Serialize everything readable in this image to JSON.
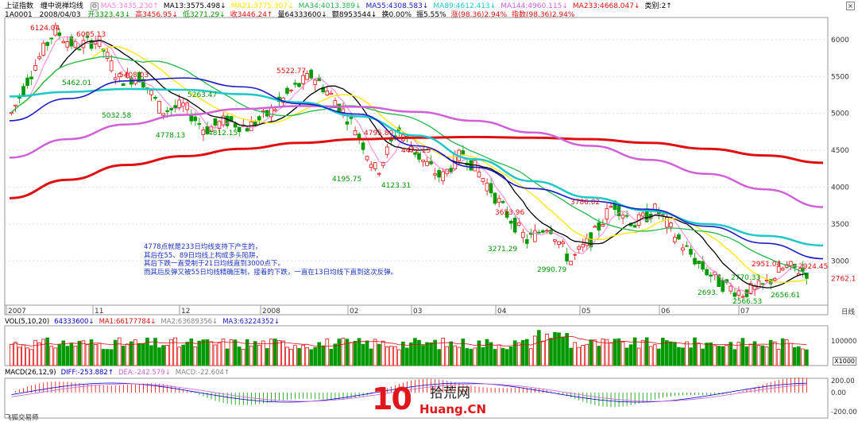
{
  "header": {
    "title": "上证指数",
    "indicator": "缠中说禅均线",
    "ma_items": [
      {
        "label": "MA5:3435.230↑",
        "color": "#ff7fd8"
      },
      {
        "label": "MA13:3575.498↓",
        "color": "#000000"
      },
      {
        "label": "MA21:3775.307↓",
        "color": "#ffe600"
      },
      {
        "label": "MA34:4013.389↓",
        "color": "#22b84a"
      },
      {
        "label": "MA55:4308.583↓",
        "color": "#1a1ac8"
      },
      {
        "label": "MA89:4612.413↓",
        "color": "#1ec8c8"
      },
      {
        "label": "MA144:4960.115↓",
        "color": "#d060d8"
      },
      {
        "label": "MA233:4668.047↓",
        "color": "#e01010"
      },
      {
        "label": "类别:2↑",
        "color": "#000000"
      }
    ]
  },
  "ohlc": {
    "code": "1A0001",
    "date": "2008/04/03",
    "items": [
      {
        "label": "开3323.43↓",
        "color": "#009900"
      },
      {
        "label": "高3456.95↓",
        "color": "#e01010"
      },
      {
        "label": "低3271.29↓",
        "color": "#009900"
      },
      {
        "label": "收3446.24↑",
        "color": "#e01010"
      },
      {
        "label": "量64333600↓",
        "color": "#000000"
      },
      {
        "label": "额8953544↓",
        "color": "#000000"
      },
      {
        "label": "换0.00%",
        "color": "#000000"
      },
      {
        "label": "振5.55%",
        "color": "#000000"
      },
      {
        "label": "涨(98.36)2.94%",
        "color": "#e01010"
      },
      {
        "label": "指数(98.36)2.94%",
        "color": "#e01010"
      }
    ]
  },
  "price_labels": {
    "y_axis": [
      "6000",
      "5500",
      "5000",
      "4500",
      "4000",
      "3500",
      "3000"
    ],
    "current": "2762.1",
    "highs_lows": [
      {
        "text": "6124.04",
        "color": "#e01010"
      },
      {
        "text": "6005.13",
        "color": "#e01010"
      },
      {
        "text": "5462.01",
        "color": "#009900"
      },
      {
        "text": "5032.58",
        "color": "#009900"
      },
      {
        "text": "5522.77",
        "color": "#e01010"
      },
      {
        "text": "4778.13",
        "color": "#009900"
      },
      {
        "text": "4812.15",
        "color": "#009900"
      },
      {
        "text": "4795.80",
        "color": "#e01010"
      },
      {
        "text": "4195.75",
        "color": "#009900"
      },
      {
        "text": "4123.31",
        "color": "#009900"
      },
      {
        "text": "4472.15",
        "color": "#e01010"
      },
      {
        "text": "3653.96",
        "color": "#e01010"
      },
      {
        "text": "3271.29",
        "color": "#009900"
      },
      {
        "text": "3786.02",
        "color": "#e01010"
      },
      {
        "text": "2990.79",
        "color": "#009900"
      },
      {
        "text": "2951.04",
        "color": "#e01010"
      },
      {
        "text": "2693.",
        "color": "#009900"
      },
      {
        "text": "2566.53",
        "color": "#009900"
      },
      {
        "text": "2656.61",
        "color": "#009900"
      },
      {
        "text": "2924.45",
        "color": "#e01010"
      },
      {
        "text": "2770.33",
        "color": "#009900"
      },
      {
        "text": "5263.47",
        "color": "#009900"
      },
      {
        "text": "5408.03",
        "color": "#e01010"
      }
    ],
    "time_axis": [
      "2007",
      "11",
      "12",
      "2008",
      "02",
      "03",
      "04",
      "05",
      "06",
      "07"
    ],
    "day_button": "日线"
  },
  "annotation": {
    "lines": [
      "4778点就是233日均线支持下产生的，",
      "其后在55、89日均线上构成多头陷阱，",
      "其后下跌一直受制于21日均线直到3000点下。",
      "而其后反弹又被55日均线精确压制，接着的下跌，一直在13日均线下直到这次反弹。"
    ]
  },
  "volume": {
    "header": [
      {
        "label": "VOL(5,10,20)",
        "color": "#000000"
      },
      {
        "label": "64333600↓",
        "color": "#0000cc"
      },
      {
        "label": "MA1:66177784↓",
        "color": "#e01010"
      },
      {
        "label": "MA2:63689356↓",
        "color": "#888888"
      },
      {
        "label": "MA3:63224352↓",
        "color": "#1a1ac8"
      }
    ],
    "y_label": "100000",
    "unit_label": "X1000"
  },
  "macd": {
    "header": [
      {
        "label": "MACD(26,12,9)",
        "color": "#000000"
      },
      {
        "label": "DIFF:-253.882↑",
        "color": "#0000cc"
      },
      {
        "label": "DEA:-242.579↓",
        "color": "#d060d8"
      },
      {
        "label": "MACD:-22.604↑",
        "color": "#888888"
      }
    ],
    "y_labels": [
      "200.00",
      "0.00",
      "-200.00"
    ]
  },
  "footer": "飞狐交易师",
  "watermark": {
    "big": "10",
    "cn": "拾荒网",
    "url": "Huang.CN"
  },
  "chart_data": {
    "type": "candlestick",
    "y_range": [
      2400,
      6300
    ],
    "y_ticks": [
      3000,
      3500,
      4000,
      4500,
      5000,
      5500,
      6000
    ],
    "series": [
      {
        "name": "MA233",
        "color": "#e01010",
        "values": [
          3850,
          4100,
          4300,
          4420,
          4520,
          4600,
          4650,
          4670,
          4680,
          4670,
          4650,
          4600,
          4520,
          4430,
          4330
        ]
      },
      {
        "name": "MA144",
        "color": "#d060d8",
        "values": [
          4400,
          4650,
          4850,
          4980,
          5060,
          5100,
          5090,
          5020,
          4900,
          4740,
          4560,
          4370,
          4180,
          3970,
          3730
        ]
      },
      {
        "name": "MA89",
        "color": "#1ec8c8",
        "values": [
          5230,
          5290,
          5330,
          5320,
          5260,
          5150,
          4960,
          4700,
          4380,
          4080,
          3860,
          3680,
          3500,
          3340,
          3210
        ]
      },
      {
        "name": "MA55",
        "color": "#1a1ac8",
        "values": [
          4900,
          5200,
          5440,
          5480,
          5360,
          5130,
          4990,
          4560,
          4270,
          3980,
          3810,
          3700,
          3470,
          3240,
          3030
        ]
      }
    ]
  }
}
